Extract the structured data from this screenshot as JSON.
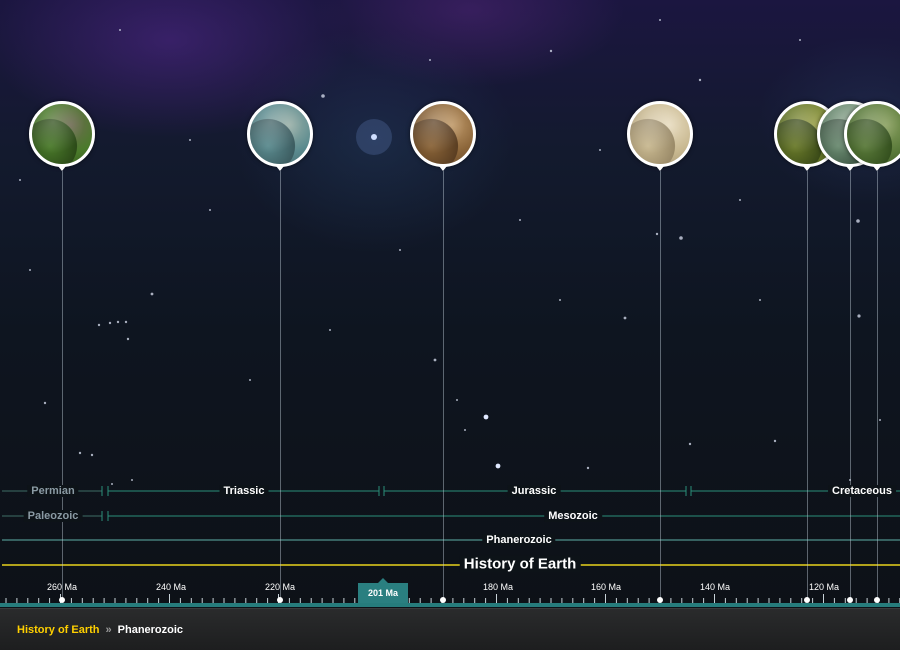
{
  "timeline": {
    "events": [
      {
        "name": "turtle-event-icon",
        "colors": [
          "#4a7a2a",
          "#6e6a52",
          "#2c4a18"
        ]
      },
      {
        "name": "marine-reptiles-event-icon",
        "colors": [
          "#5a8a8e",
          "#9ab0a8",
          "#3c5c60"
        ]
      },
      {
        "name": "rock-landscape-event-icon",
        "colors": [
          "#8a6438",
          "#c09a6a",
          "#5a3e22"
        ]
      },
      {
        "name": "sauropod-event-icon",
        "colors": [
          "#c8b890",
          "#e8dcc0",
          "#9a8a68"
        ]
      },
      {
        "name": "raptor-event-icon",
        "colors": [
          "#6a7a2a",
          "#9aa048",
          "#3a4a18"
        ]
      },
      {
        "name": "dinosaur-herd-event-icon",
        "colors": [
          "#6a8a70",
          "#a0b4a0",
          "#3c5442"
        ]
      },
      {
        "name": "armored-dinosaur-event-icon",
        "colors": [
          "#5a7a3a",
          "#8aa060",
          "#34501e"
        ]
      }
    ],
    "bands": {
      "periods": [
        {
          "label": "Permian"
        },
        {
          "label": "Triassic"
        },
        {
          "label": "Jurassic"
        },
        {
          "label": "Cretaceous"
        }
      ],
      "eras": [
        {
          "label": "Paleozoic"
        },
        {
          "label": "Mesozoic"
        }
      ],
      "eon": {
        "label": "Phanerozoic"
      },
      "root": {
        "label": "History of Earth"
      }
    },
    "axis": {
      "ticks": [
        "260 Ma",
        "240 Ma",
        "220 Ma",
        "180 Ma",
        "160 Ma",
        "140 Ma",
        "120 Ma"
      ],
      "current_marker": "201 Ma"
    },
    "colors": {
      "period_line": "#2a8f7a",
      "eon_line": "#5fb0a8",
      "root_line": "#e8d21c",
      "axis_bar": "#267c7c",
      "breadcrumb_home": "#ffd000"
    }
  },
  "breadcrumb": {
    "home": "History of Earth",
    "separator": "»",
    "current": "Phanerozoic"
  }
}
